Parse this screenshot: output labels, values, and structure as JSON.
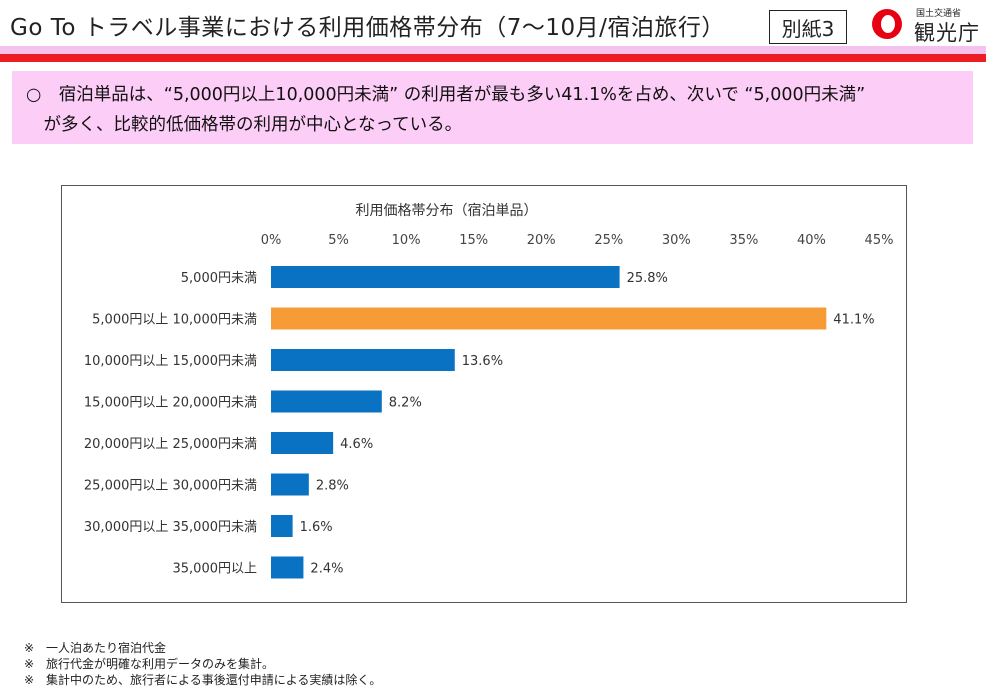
{
  "header": {
    "title": "Go To トラベル事業における利用価格帯分布（7～10月/宿泊旅行）",
    "badge": "別紙3",
    "logo_org": "国土交通省",
    "logo_name": "観光庁"
  },
  "summary": {
    "line1": "○　宿泊単品は、“5,000円以上10,000円未満” の利用者が最も多い41.1%を占め、次いで “5,000円未満”",
    "line2": "　が多く、比較的低価格帯の利用が中心となっている。"
  },
  "chart_data": {
    "type": "bar",
    "orientation": "horizontal",
    "title": "利用価格帯分布（宿泊単品）",
    "categories": [
      "5,000円未満",
      "5,000円以上 10,000円未満",
      "10,000円以上 15,000円未満",
      "15,000円以上 20,000円未満",
      "20,000円以上 25,000円未満",
      "25,000円以上 30,000円未満",
      "30,000円以上 35,000円未満",
      "35,000円以上"
    ],
    "values": [
      25.8,
      41.1,
      13.6,
      8.2,
      4.6,
      2.8,
      1.6,
      2.4
    ],
    "value_labels": [
      "25.8%",
      "41.1%",
      "13.6%",
      "8.2%",
      "4.6%",
      "2.8%",
      "1.6%",
      "2.4%"
    ],
    "xticks": [
      "0%",
      "5%",
      "10%",
      "15%",
      "20%",
      "25%",
      "30%",
      "35%",
      "40%",
      "45%"
    ],
    "xlim": [
      0,
      45
    ],
    "axis_position": "top",
    "grid": false,
    "colors": {
      "default": "#0a72c3",
      "highlight": "#f79b36",
      "highlight_index": 1
    }
  },
  "notes": [
    "※　一人泊あたり宿泊代金",
    "※　旅行代金が明確な利用データのみを集計。",
    "※　集計中のため、旅行者による事後還付申請による実績は除く。"
  ]
}
